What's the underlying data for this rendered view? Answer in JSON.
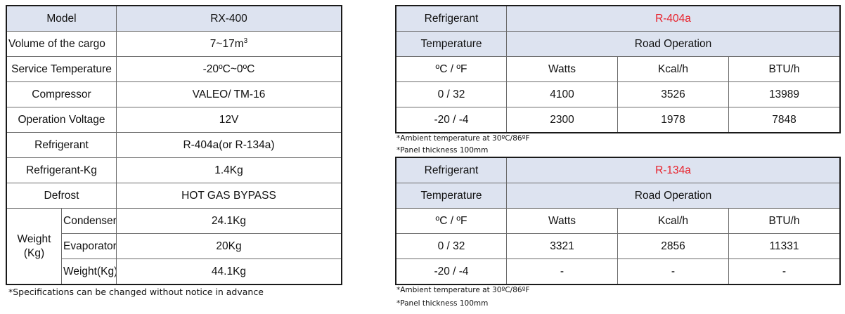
{
  "spec": {
    "model": {
      "label": "Model",
      "value": "RX-400"
    },
    "volume": {
      "label": "Volume of the cargo",
      "value": "7~17m",
      "sup": "3"
    },
    "service_temp": {
      "label": "Service Temperature",
      "value": "-20ºC~0ºC"
    },
    "compressor": {
      "label": "Compressor",
      "value": "VALEO/ TM-16"
    },
    "voltage": {
      "label": "Operation Voltage",
      "value": "12V"
    },
    "refrigerant": {
      "label": "Refrigerant",
      "value": "R-404a(or R-134a)"
    },
    "refrigerant_kg": {
      "label": "Refrigerant-Kg",
      "value": "1.4Kg"
    },
    "defrost": {
      "label": "Defrost",
      "value": "HOT GAS BYPASS"
    },
    "weight": {
      "label_line1": "Weight",
      "label_line2": "(Kg)",
      "condenser": {
        "label": "Condenser",
        "value": "24.1Kg"
      },
      "evaporator": {
        "label": "Evaporator",
        "value": "20Kg"
      },
      "total": {
        "label": "Weight(Kg)",
        "value": "44.1Kg"
      }
    },
    "footnote": "*Specifications can be changed without notice in advance"
  },
  "perf_tables": [
    {
      "refrigerant_label": "Refrigerant",
      "refrigerant_value": "R-404a",
      "temperature_label": "Temperature",
      "operation_label": "Road Operation",
      "unit_header": [
        "ºC / ºF",
        "Watts",
        "Kcal/h",
        "BTU/h"
      ],
      "rows": [
        [
          "0  / 32",
          "4100",
          "3526",
          "13989"
        ],
        [
          "-20 / -4",
          "2300",
          "1978",
          "7848"
        ]
      ],
      "note1": "*Ambient temperature at 30ºC/86ºF",
      "note2": "*Panel thickness 100mm"
    },
    {
      "refrigerant_label": "Refrigerant",
      "refrigerant_value": "R-134a",
      "temperature_label": "Temperature",
      "operation_label": "Road Operation",
      "unit_header": [
        "ºC / ºF",
        "Watts",
        "Kcal/h",
        "BTU/h"
      ],
      "rows": [
        [
          "0  / 32",
          "3321",
          "2856",
          "11331"
        ],
        [
          "-20 / -4",
          "-",
          "-",
          "-"
        ]
      ],
      "note1": "*Ambient temperature at 30ºC/86ºF",
      "note2": "*Panel thickness 100mm"
    }
  ],
  "colors": {
    "header_bg": "#dde3f0",
    "accent_red": "#e8202a"
  }
}
